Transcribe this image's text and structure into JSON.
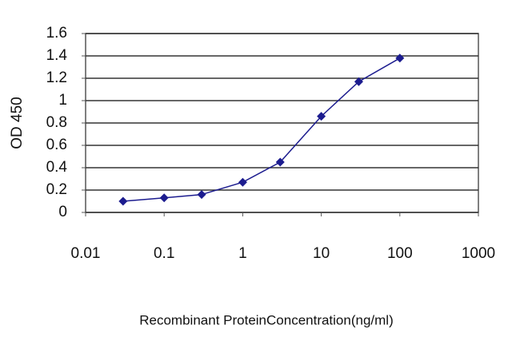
{
  "chart_data": {
    "type": "line",
    "x_label": "Recombinant ProteinConcentration(ng/ml)",
    "y_label": "OD 450",
    "x": [
      0.03,
      0.1,
      0.3,
      1,
      3,
      10,
      30,
      100
    ],
    "series": [
      {
        "color": "#1c1c8f",
        "values": [
          0.1,
          0.13,
          0.16,
          0.27,
          0.45,
          0.86,
          1.17,
          1.38
        ]
      }
    ],
    "xlim": [
      0.01,
      1000
    ],
    "xticks": [
      0.01,
      0.1,
      1,
      10,
      100,
      1000
    ],
    "xscale": "log",
    "ylim": [
      0,
      1.6
    ],
    "yticks": [
      0,
      0.2,
      0.4,
      0.6,
      0.8,
      1,
      1.2,
      1.4,
      1.6
    ],
    "grid": true
  }
}
